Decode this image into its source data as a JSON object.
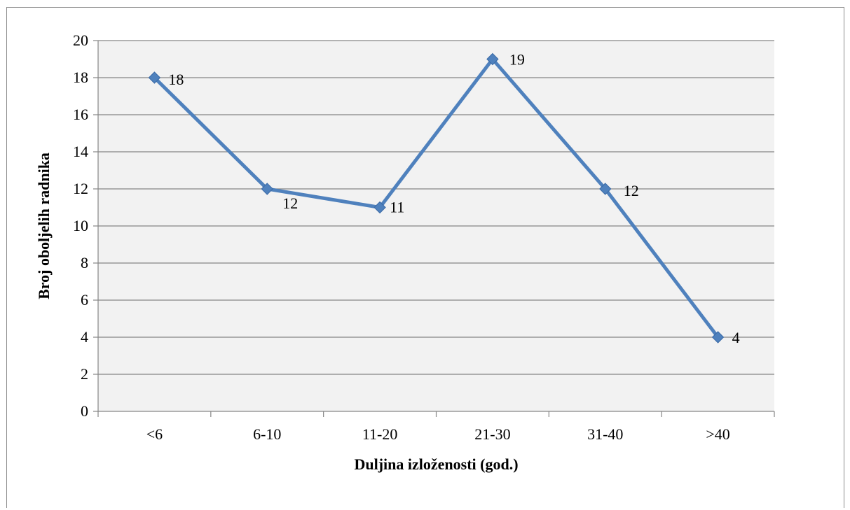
{
  "chart_data": {
    "type": "line",
    "title": "",
    "xlabel": "Duljina izloženosti (god.)",
    "ylabel": "Broj oboljelih radnika",
    "categories": [
      "<6",
      "6-10",
      "11-20",
      "21-30",
      "31-40",
      ">40"
    ],
    "series": [
      {
        "values": [
          18,
          12,
          11,
          19,
          12,
          4
        ],
        "color": "#4F81BD",
        "marker": "diamond"
      }
    ],
    "data_labels": [
      "18",
      "12",
      "11",
      "19",
      "12",
      "4"
    ],
    "ylim": [
      0,
      20
    ],
    "yticks": [
      0,
      2,
      4,
      6,
      8,
      10,
      12,
      14,
      16,
      18,
      20
    ],
    "grid": true,
    "legend": "none",
    "plot_background": "#F2F2F2",
    "gridline_color": "#868686"
  }
}
